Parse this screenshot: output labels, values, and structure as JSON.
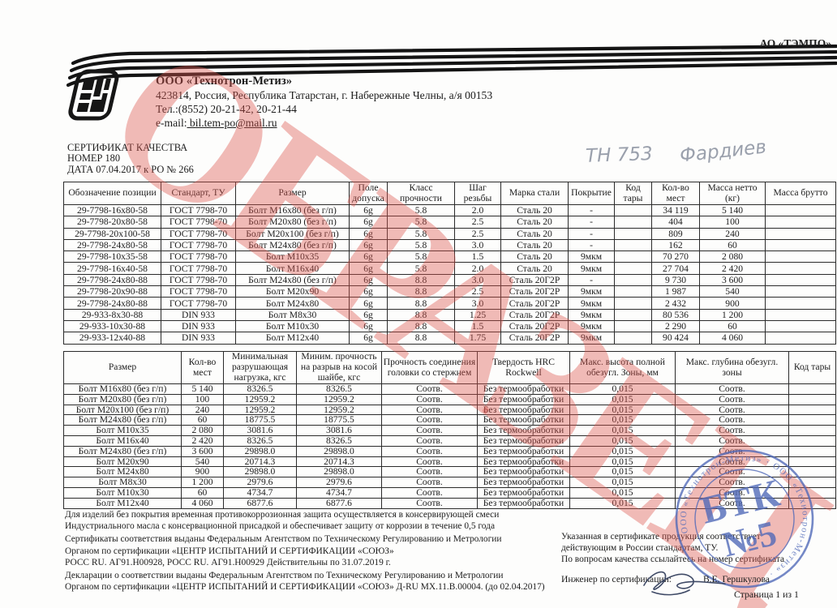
{
  "header": {
    "org_top_right": "АО «ТЭМПО»"
  },
  "company": {
    "name": "ООО «Технотрон-Метиз»",
    "address": "423814, Россия, Республика Татарстан,  г. Набережные Челны, а/я 00153",
    "phone": "Тел.:(8552) 20-21-42, 20-21-44",
    "email_label": "e-mail:",
    "email": " bil.tem-po@mail.ru"
  },
  "certificate": {
    "title": "СЕРТИФИКАТ КАЧЕСТВА",
    "number": "НОМЕР 180",
    "date": "ДАТА 07.04.2017  к РО № 266"
  },
  "handwriting": {
    "part1": "ТН 753",
    "part2": "Фардиев"
  },
  "watermark": {
    "text": "ОБРАЗЕЦ",
    "color": "#dd564e"
  },
  "table1": {
    "headers": [
      "Обозначение позиции",
      "Стандарт, ТУ",
      "Размер",
      "Поле допуска",
      "Класс прочности",
      "Шаг резьбы",
      "Марка стали",
      "Покрытие",
      "Код тары",
      "Кол-во мест",
      "Масса нетто (кг)",
      "Масса брутто"
    ],
    "rows": [
      [
        "29-7798-16x80-58",
        "ГОСТ 7798-70",
        "Болт М16х80 (без г/п)",
        "6g",
        "5.8",
        "2.0",
        "Сталь 20",
        "-",
        "",
        "34 119",
        "5 140",
        ""
      ],
      [
        "29-7798-20x80-58",
        "ГОСТ 7798-70",
        "Болт М20х80 (без г/п)",
        "6g",
        "5.8",
        "2.5",
        "Сталь 20",
        "-",
        "",
        "404",
        "100",
        ""
      ],
      [
        "29-7798-20x100-58",
        "ГОСТ 7798-70",
        "Болт М20х100 (без г/п)",
        "6g",
        "5.8",
        "2.5",
        "Сталь 20",
        "-",
        "",
        "809",
        "240",
        ""
      ],
      [
        "29-7798-24x80-58",
        "ГОСТ 7798-70",
        "Болт М24х80 (без г/п)",
        "6g",
        "5.8",
        "3.0",
        "Сталь 20",
        "-",
        "",
        "162",
        "60",
        ""
      ],
      [
        "29-7798-10x35-58",
        "ГОСТ 7798-70",
        "Болт М10х35",
        "6g",
        "5.8",
        "1.5",
        "Сталь 20",
        "9мкм",
        "",
        "70 270",
        "2 080",
        ""
      ],
      [
        "29-7798-16x40-58",
        "ГОСТ 7798-70",
        "Болт М16х40",
        "6g",
        "5.8",
        "2.0",
        "Сталь 20",
        "9мкм",
        "",
        "27 704",
        "2 420",
        ""
      ],
      [
        "29-7798-24x80-88",
        "ГОСТ 7798-70",
        "Болт М24х80 (без г/п)",
        "6g",
        "8.8",
        "3.0",
        "Сталь 20Г2Р",
        "-",
        "",
        "9 730",
        "3 600",
        ""
      ],
      [
        "29-7798-20x90-88",
        "ГОСТ 7798-70",
        "Болт М20х90",
        "6g",
        "8.8",
        "2.5",
        "Сталь 20Г2Р",
        "9мкм",
        "",
        "1 987",
        "540",
        ""
      ],
      [
        "29-7798-24x80-88",
        "ГОСТ 7798-70",
        "Болт М24х80",
        "6g",
        "8.8",
        "3.0",
        "Сталь 20Г2Р",
        "9мкм",
        "",
        "2 432",
        "900",
        ""
      ],
      [
        "29-933-8x30-88",
        "DIN 933",
        "Болт М8х30",
        "6g",
        "8.8",
        "1.25",
        "Сталь 20Г2Р",
        "9мкм",
        "",
        "80 536",
        "1 200",
        ""
      ],
      [
        "29-933-10x30-88",
        "DIN 933",
        "Болт М10х30",
        "6g",
        "8.8",
        "1.5",
        "Сталь 20Г2Р",
        "9мкм",
        "",
        "2 290",
        "60",
        ""
      ],
      [
        "29-933-12x40-88",
        "DIN 933",
        "Болт М12х40",
        "6g",
        "8.8",
        "1.75",
        "Сталь 20Г2Р",
        "9мкм",
        "",
        "90 424",
        "4 060",
        ""
      ]
    ]
  },
  "table2": {
    "headers": [
      "Размер",
      "Кол-во мест",
      "Минимальная разрушающая нагрузка, кгс",
      "Миним. прочность на разрыв на косой шайбе, кгс",
      "Прочность соединения головки со стержнем",
      "Твердость HRC Rockwell",
      "Макс. высота полной обезугл. Зоны, мм",
      "Макс. глубина обезугл. зоны",
      "Код тары"
    ],
    "rows": [
      [
        "Болт М16х80 (без г/п)",
        "5 140",
        "8326.5",
        "8326.5",
        "Соотв.",
        "Без термообработки",
        "0,015",
        "Соотв.",
        ""
      ],
      [
        "Болт М20х80 (без г/п)",
        "100",
        "12959.2",
        "12959.2",
        "Соотв.",
        "Без термообработки",
        "0,015",
        "Соотв.",
        ""
      ],
      [
        "Болт М20х100 (без г/п)",
        "240",
        "12959.2",
        "12959.2",
        "Соотв.",
        "Без термообработки",
        "0,015",
        "Соотв.",
        ""
      ],
      [
        "Болт М24х80 (без г/п)",
        "60",
        "18775.5",
        "18775.5",
        "Соотв.",
        "Без термообработки",
        "0,015",
        "Соотв.",
        ""
      ],
      [
        "Болт М10х35",
        "2 080",
        "3081.6",
        "3081.6",
        "Соотв.",
        "Без термообработки",
        "0,015",
        "Соотв.",
        ""
      ],
      [
        "Болт М16х40",
        "2 420",
        "8326.5",
        "8326.5",
        "Соотв.",
        "Без термообработки",
        "0,015",
        "Соотв.",
        ""
      ],
      [
        "Болт М24х80 (без г/п)",
        "3 600",
        "29898.0",
        "29898.0",
        "Соотв.",
        "Без термообработки",
        "0,015",
        "Соотв.",
        ""
      ],
      [
        "Болт М20х90",
        "540",
        "20714.3",
        "20714.3",
        "Соотв.",
        "Без термообработки",
        "0,015",
        "Соотв.",
        ""
      ],
      [
        "Болт М24х80",
        "900",
        "29898.0",
        "29898.0",
        "Соотв.",
        "Без термообработки",
        "0,015",
        "Соотв.",
        ""
      ],
      [
        "Болт М8х30",
        "1 200",
        "2979.6",
        "2979.6",
        "Соотв.",
        "Без термообработки",
        "0,015",
        "Соотв.",
        ""
      ],
      [
        "Болт М10х30",
        "60",
        "4734.7",
        "4734.7",
        "Соотв.",
        "Без термообработки",
        "0,015",
        "Соотв.",
        ""
      ],
      [
        "Болт М12х40",
        "4 060",
        "6877.6",
        "6877.6",
        "Соотв.",
        "Без термообработки",
        "0,015",
        "Соотв.",
        ""
      ]
    ]
  },
  "footer": {
    "left_lines": [
      "Для изделий без покрытия временная противокоррозионная защита осуществляется в консервирующей смеси",
      "Индустриального масла с консервационной присадкой и обеспечивает защиту от коррозии в течение 0,5 года",
      "Сертификаты соответствия выданы Федеральным Агентством по Техническому Регулированию и Метрологии",
      "Органом по сертификации «ЦЕНТР ИСПЫТАНИЙ И СЕРТИФИКАЦИИ «СОЮЗ»",
      "РОСС RU. АГ91.Н00928,  РОСС RU. АГ91.Н00929 Действительны по 31.07.2019 г.",
      "Декларации о соответствии выданы Федеральным Агентством по Техническому Регулированию и Метрологии",
      "Органом по сертификации «ЦЕНТР ИСПЫТАНИЙ И СЕРТИФИКАЦИИ «СОЮЗ» Д-RU МХ.11.В.00004. (до 02.04.2017)"
    ],
    "right_lines": [
      "Указанная в сертификате продукция соответствует",
      "действующим в России стандартам, ТУ.",
      "По вопросам качества ссылайтесь на номер сертификата"
    ],
    "signature_label": "Инженер по сертификации:",
    "signature_name": "В.Е. Гершкулова",
    "page_number": "Страница 1 из 1"
  },
  "stamp": {
    "line1": "БТК",
    "line2": "№5",
    "ring_text": "ООО «Технотрон-Метиз»  ·  ООО «Технотрон-Метиз»  ·",
    "color": "#4e68b8"
  }
}
